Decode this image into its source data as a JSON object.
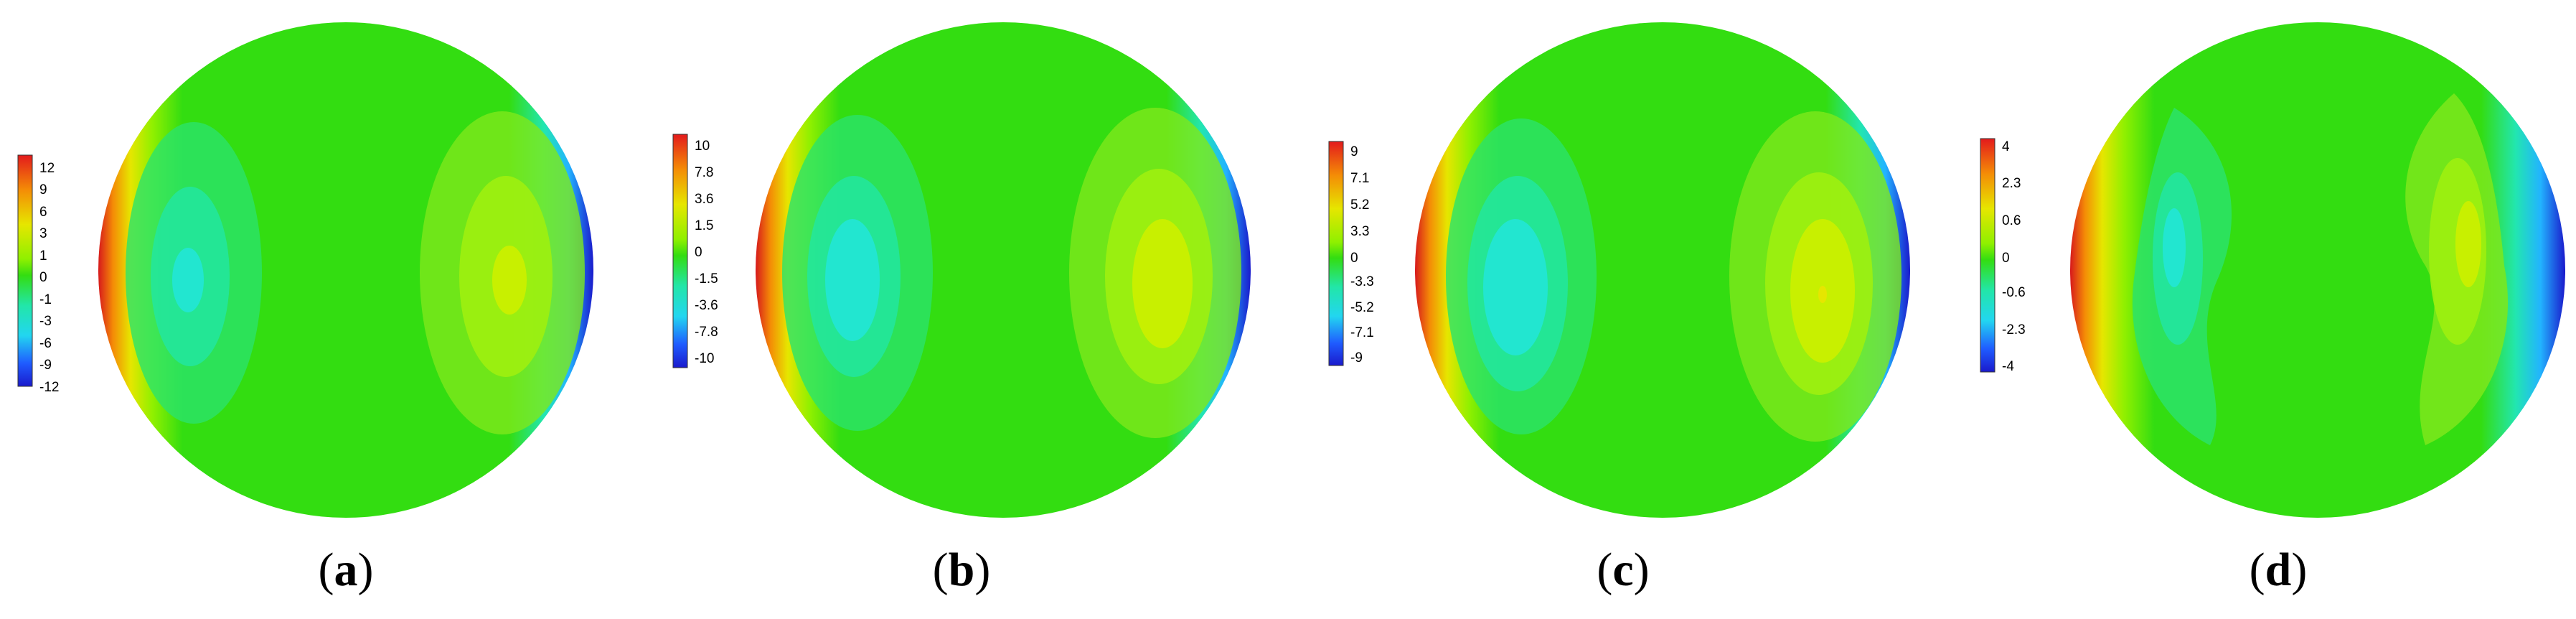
{
  "panels": [
    {
      "label_letter": "a",
      "colorbar": [
        "12",
        "9",
        "6",
        "3",
        "1",
        "0",
        "-1",
        "-3",
        "-6",
        "-9",
        "-12"
      ]
    },
    {
      "label_letter": "b",
      "colorbar": [
        "10",
        "7.8",
        "3.6",
        "1.5",
        "0",
        "-1.5",
        "-3.6",
        "-7.8",
        "-10"
      ]
    },
    {
      "label_letter": "c",
      "colorbar": [
        "9",
        "7.1",
        "5.2",
        "3.3",
        "0",
        "-3.3",
        "-5.2",
        "-7.1",
        "-9"
      ]
    },
    {
      "label_letter": "d",
      "colorbar": [
        "4",
        "2.3",
        "0.6",
        "0",
        "-0.6",
        "-2.3",
        "-4"
      ]
    }
  ],
  "colors": {
    "red": "#d7191c",
    "orange": "#f48c06",
    "yellow": "#e6e600",
    "yellow_green": "#bff000",
    "green": "#33dd11",
    "teal_green": "#22e67f",
    "cyan": "#22e6d0",
    "blue": "#1f5cff",
    "dark_blue": "#1a1acc"
  }
}
